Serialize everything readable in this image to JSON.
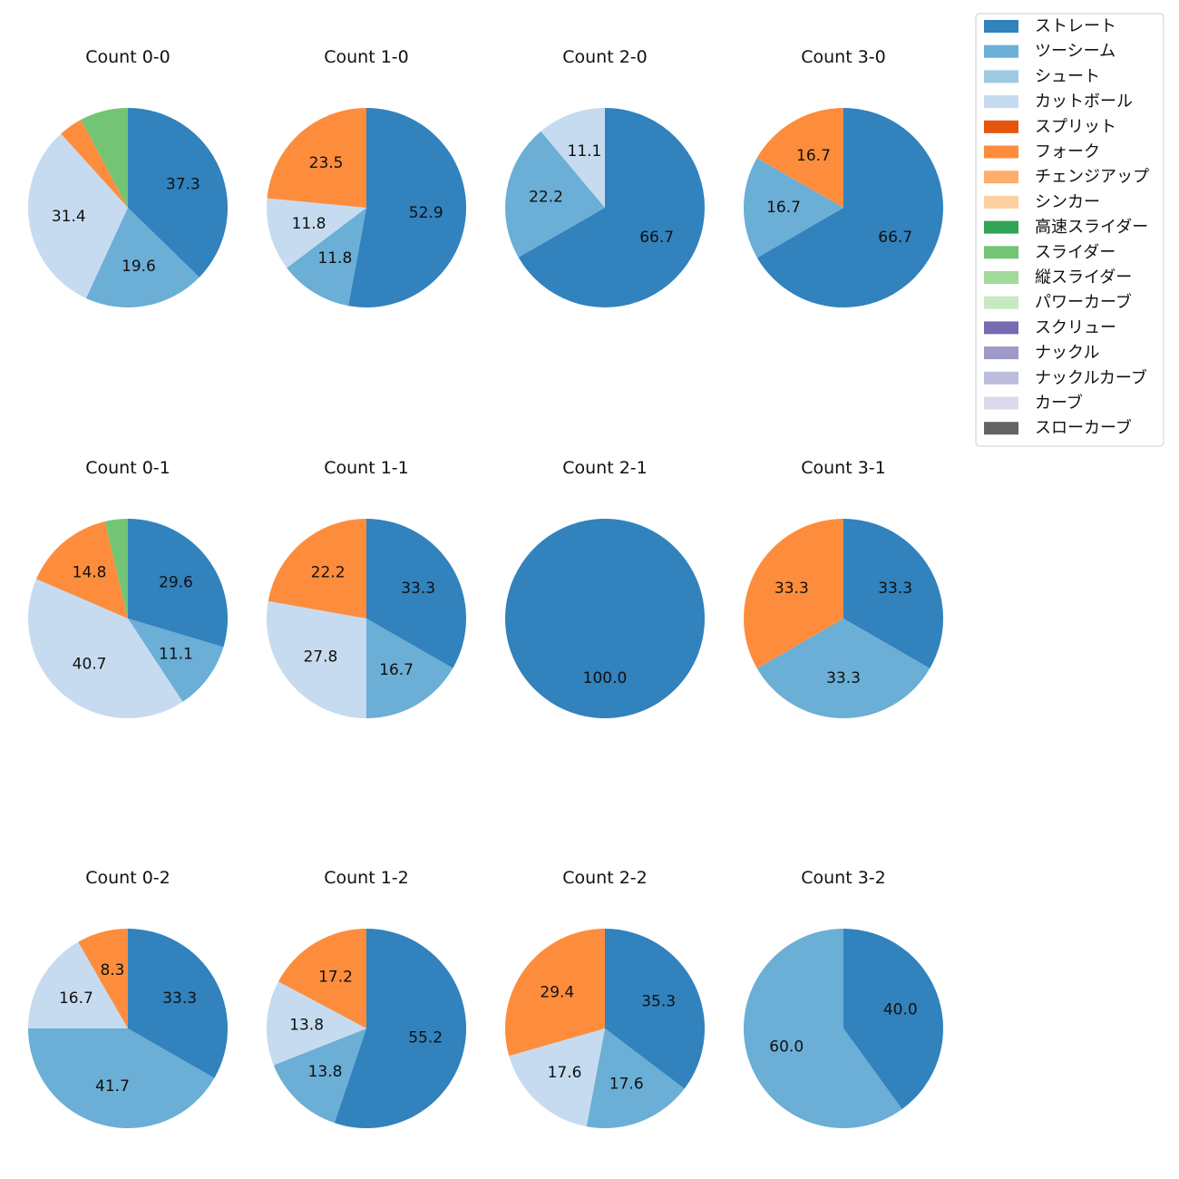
{
  "chart_data": {
    "type": "pie",
    "legend": {
      "placement": "top-right",
      "entries": [
        {
          "name": "ストレート",
          "color": "#3182bd"
        },
        {
          "name": "ツーシーム",
          "color": "#6baed6"
        },
        {
          "name": "シュート",
          "color": "#9ecae1"
        },
        {
          "name": "カットボール",
          "color": "#c6dbef"
        },
        {
          "name": "スプリット",
          "color": "#e6550d"
        },
        {
          "name": "フォーク",
          "color": "#fd8d3c"
        },
        {
          "name": "チェンジアップ",
          "color": "#fdae6b"
        },
        {
          "name": "シンカー",
          "color": "#fdd0a2"
        },
        {
          "name": "高速スライダー",
          "color": "#31a354"
        },
        {
          "name": "スライダー",
          "color": "#74c476"
        },
        {
          "name": "縦スライダー",
          "color": "#a1d99b"
        },
        {
          "name": "パワーカーブ",
          "color": "#c7e9c0"
        },
        {
          "name": "スクリュー",
          "color": "#756bb1"
        },
        {
          "name": "ナックル",
          "color": "#9e9ac8"
        },
        {
          "name": "ナックルカーブ",
          "color": "#bcbddc"
        },
        {
          "name": "カーブ",
          "color": "#dadaeb"
        },
        {
          "name": "スローカーブ",
          "color": "#636363"
        }
      ]
    },
    "pies": [
      {
        "title": "Count 0-0",
        "slices": [
          {
            "pitch": "ストレート",
            "value": 37.3
          },
          {
            "pitch": "ツーシーム",
            "value": 19.6
          },
          {
            "pitch": "カットボール",
            "value": 31.4
          },
          {
            "pitch": "フォーク",
            "value": 3.9,
            "label_hidden": true
          },
          {
            "pitch": "スライダー",
            "value": 7.8,
            "label_hidden": true
          }
        ]
      },
      {
        "title": "Count 1-0",
        "slices": [
          {
            "pitch": "ストレート",
            "value": 52.9
          },
          {
            "pitch": "ツーシーム",
            "value": 11.8
          },
          {
            "pitch": "カットボール",
            "value": 11.8
          },
          {
            "pitch": "フォーク",
            "value": 23.5
          }
        ]
      },
      {
        "title": "Count 2-0",
        "slices": [
          {
            "pitch": "ストレート",
            "value": 66.7
          },
          {
            "pitch": "ツーシーム",
            "value": 22.2
          },
          {
            "pitch": "カットボール",
            "value": 11.1
          }
        ]
      },
      {
        "title": "Count 3-0",
        "slices": [
          {
            "pitch": "ストレート",
            "value": 66.7
          },
          {
            "pitch": "ツーシーム",
            "value": 16.7
          },
          {
            "pitch": "フォーク",
            "value": 16.7
          }
        ]
      },
      {
        "title": "Count 0-1",
        "slices": [
          {
            "pitch": "ストレート",
            "value": 29.6
          },
          {
            "pitch": "ツーシーム",
            "value": 11.1
          },
          {
            "pitch": "カットボール",
            "value": 40.7
          },
          {
            "pitch": "フォーク",
            "value": 14.8
          },
          {
            "pitch": "スライダー",
            "value": 3.7,
            "label_hidden": true
          }
        ]
      },
      {
        "title": "Count 1-1",
        "slices": [
          {
            "pitch": "ストレート",
            "value": 33.3
          },
          {
            "pitch": "ツーシーム",
            "value": 16.7
          },
          {
            "pitch": "カットボール",
            "value": 27.8
          },
          {
            "pitch": "フォーク",
            "value": 22.2
          }
        ]
      },
      {
        "title": "Count 2-1",
        "slices": [
          {
            "pitch": "ストレート",
            "value": 100.0
          }
        ]
      },
      {
        "title": "Count 3-1",
        "slices": [
          {
            "pitch": "ストレート",
            "value": 33.3
          },
          {
            "pitch": "ツーシーム",
            "value": 33.3
          },
          {
            "pitch": "フォーク",
            "value": 33.3
          }
        ]
      },
      {
        "title": "Count 0-2",
        "slices": [
          {
            "pitch": "ストレート",
            "value": 33.3
          },
          {
            "pitch": "ツーシーム",
            "value": 41.7
          },
          {
            "pitch": "カットボール",
            "value": 16.7
          },
          {
            "pitch": "フォーク",
            "value": 8.3
          }
        ]
      },
      {
        "title": "Count 1-2",
        "slices": [
          {
            "pitch": "ストレート",
            "value": 55.2
          },
          {
            "pitch": "ツーシーム",
            "value": 13.8
          },
          {
            "pitch": "カットボール",
            "value": 13.8
          },
          {
            "pitch": "フォーク",
            "value": 17.2
          }
        ]
      },
      {
        "title": "Count 2-2",
        "slices": [
          {
            "pitch": "ストレート",
            "value": 35.3
          },
          {
            "pitch": "ツーシーム",
            "value": 17.6
          },
          {
            "pitch": "カットボール",
            "value": 17.6
          },
          {
            "pitch": "フォーク",
            "value": 29.4
          }
        ]
      },
      {
        "title": "Count 3-2",
        "slices": [
          {
            "pitch": "ストレート",
            "value": 40.0
          },
          {
            "pitch": "ツーシーム",
            "value": 60.0
          }
        ]
      }
    ]
  }
}
